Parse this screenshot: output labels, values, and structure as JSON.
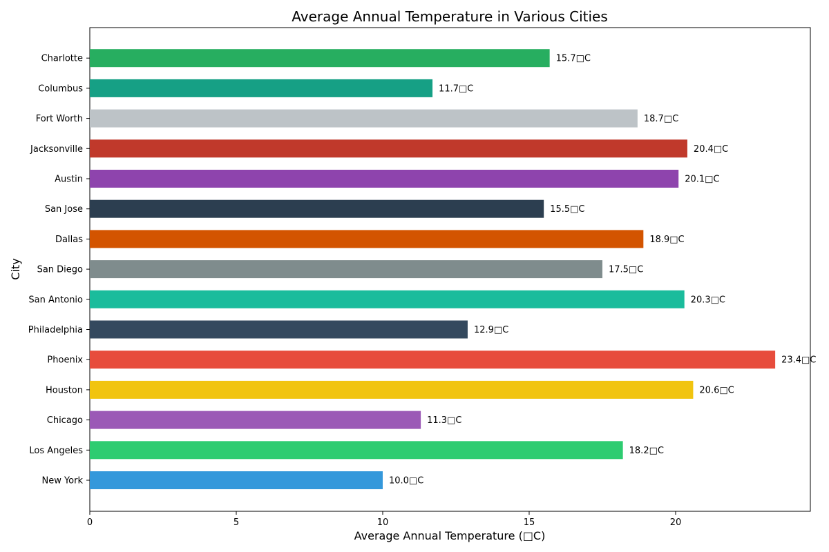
{
  "chart_data": {
    "type": "bar",
    "orientation": "horizontal",
    "title": "Average Annual Temperature in Various Cities",
    "xlabel": "Average Annual Temperature (□C)",
    "ylabel": "City",
    "xlim": [
      0,
      24.6
    ],
    "x_ticks": [
      0,
      5,
      10,
      15,
      20
    ],
    "grid": false,
    "categories": [
      "New York",
      "Los Angeles",
      "Chicago",
      "Houston",
      "Phoenix",
      "Philadelphia",
      "San Antonio",
      "San Diego",
      "Dallas",
      "San Jose",
      "Austin",
      "Jacksonville",
      "Fort Worth",
      "Columbus",
      "Charlotte"
    ],
    "values": [
      10.0,
      18.2,
      11.3,
      20.6,
      23.4,
      12.9,
      20.3,
      17.5,
      18.9,
      15.5,
      20.1,
      20.4,
      18.7,
      11.7,
      15.7
    ],
    "data_labels": [
      "10.0□C",
      "18.2□C",
      "11.3□C",
      "20.6□C",
      "23.4□C",
      "12.9□C",
      "20.3□C",
      "17.5□C",
      "18.9□C",
      "15.5□C",
      "20.1□C",
      "20.4□C",
      "18.7□C",
      "11.7□C",
      "15.7□C"
    ],
    "colors": [
      "#3498db",
      "#2ecc71",
      "#9b59b6",
      "#f1c40f",
      "#e74c3c",
      "#34495e",
      "#1abc9c",
      "#7f8c8d",
      "#d35400",
      "#2c3e50",
      "#8e44ad",
      "#c0392b",
      "#bdc3c7",
      "#16a085",
      "#27ae60"
    ]
  }
}
